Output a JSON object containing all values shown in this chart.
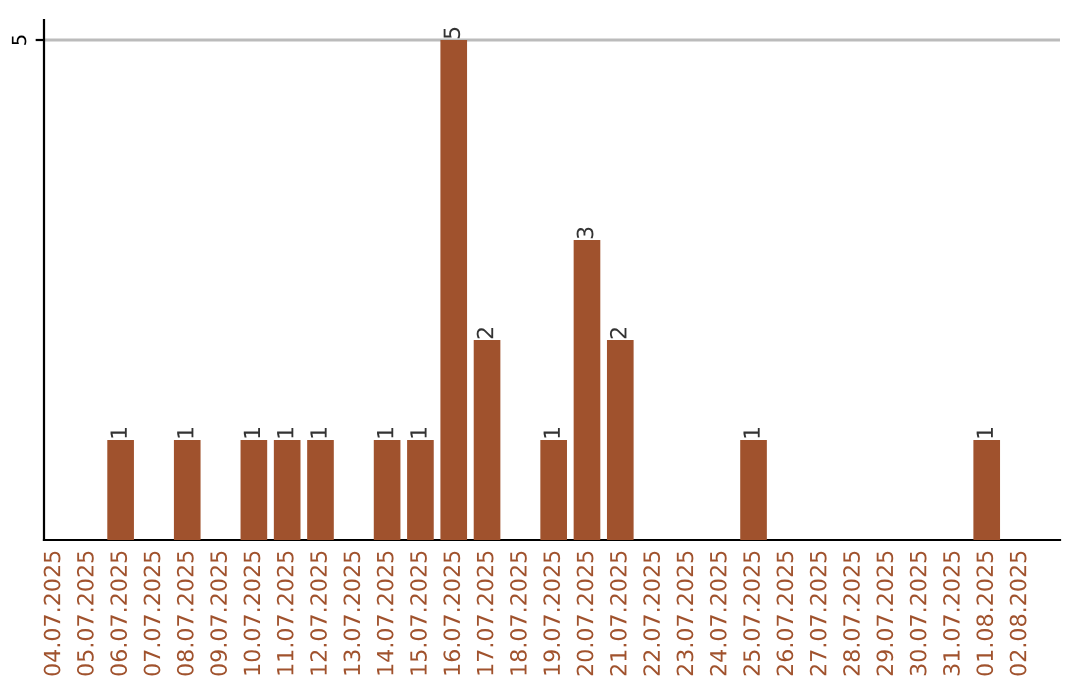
{
  "chart_data": {
    "type": "bar",
    "categories": [
      "04.07.2025",
      "05.07.2025",
      "06.07.2025",
      "07.07.2025",
      "08.07.2025",
      "09.07.2025",
      "10.07.2025",
      "11.07.2025",
      "12.07.2025",
      "13.07.2025",
      "14.07.2025",
      "15.07.2025",
      "16.07.2025",
      "17.07.2025",
      "18.07.2025",
      "19.07.2025",
      "20.07.2025",
      "21.07.2025",
      "22.07.2025",
      "23.07.2025",
      "24.07.2025",
      "25.07.2025",
      "26.07.2025",
      "27.07.2025",
      "28.07.2025",
      "29.07.2025",
      "30.07.2025",
      "31.07.2025",
      "01.08.2025",
      "02.08.2025"
    ],
    "values": [
      0,
      0,
      1,
      0,
      1,
      0,
      1,
      1,
      1,
      0,
      1,
      1,
      5,
      2,
      0,
      1,
      3,
      2,
      0,
      0,
      0,
      1,
      0,
      0,
      0,
      0,
      0,
      0,
      1,
      0
    ],
    "value_labels": [
      null,
      null,
      "1",
      null,
      "1",
      null,
      "1",
      "1",
      "1",
      null,
      "1",
      "1",
      "5",
      "2",
      null,
      "1",
      "3",
      "2",
      null,
      null,
      null,
      "1",
      null,
      null,
      null,
      null,
      null,
      null,
      "1",
      null
    ],
    "color": "#a0522d",
    "ylim": [
      0,
      5.2
    ],
    "yticks": [
      5
    ],
    "grid": "y"
  }
}
